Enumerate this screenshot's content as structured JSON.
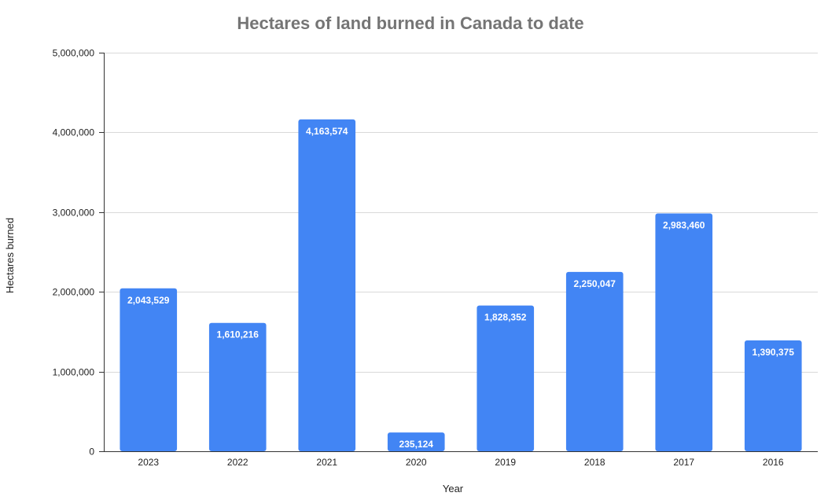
{
  "chart_data": {
    "type": "bar",
    "title": "Hectares of land burned in Canada to date",
    "xlabel": "Year",
    "ylabel": "Hectares burned",
    "categories": [
      "2023",
      "2022",
      "2021",
      "2020",
      "2019",
      "2018",
      "2017",
      "2016"
    ],
    "values": [
      2043529,
      1610216,
      4163574,
      235124,
      1828352,
      2250047,
      2983460,
      1390375
    ],
    "data_labels": [
      "2,043,529",
      "1,610,216",
      "4,163,574",
      "235,124",
      "1,828,352",
      "2,250,047",
      "2,983,460",
      "1,390,375"
    ],
    "y_ticks": [
      0,
      1000000,
      2000000,
      3000000,
      4000000,
      5000000
    ],
    "y_tick_labels": [
      "0",
      "1,000,000",
      "2,000,000",
      "3,000,000",
      "4,000,000",
      "5,000,000"
    ],
    "ylim": [
      0,
      5000000
    ],
    "grid": true,
    "legend": "none",
    "bar_color": "#4285f4"
  }
}
